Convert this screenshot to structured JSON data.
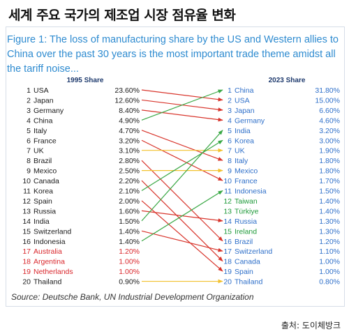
{
  "headline": "세계 주요 국가의 제조업 시장 점유율 변화",
  "figure_title": "Figure 1: The loss of manufacturing share by the US and Western allies to China over the past 30 years is the most important trade theme amidst all the tariff noise...",
  "source": "Source: Deutsche Bank, UN Industrial Development Organization",
  "credit": "출처: 도이체방크",
  "colors": {
    "black": "#1a1a1a",
    "red": "#d9262b",
    "green": "#1f9a3a",
    "blue": "#2e6fc9",
    "arrow_up": "#3aa845",
    "arrow_down": "#d8352c",
    "arrow_flat": "#f2c12e"
  },
  "chart_data": {
    "type": "slope",
    "left_header": "1995 Share",
    "right_header": "2023 Share",
    "left": [
      {
        "rank": "1",
        "country": "USA",
        "share": "23.60%",
        "color": "black"
      },
      {
        "rank": "2",
        "country": "Japan",
        "share": "12.60%",
        "color": "black"
      },
      {
        "rank": "3",
        "country": "Germany",
        "share": "8.40%",
        "color": "black"
      },
      {
        "rank": "4",
        "country": "China",
        "share": "4.90%",
        "color": "black"
      },
      {
        "rank": "5",
        "country": "Italy",
        "share": "4.70%",
        "color": "black"
      },
      {
        "rank": "6",
        "country": "France",
        "share": "3.20%",
        "color": "black"
      },
      {
        "rank": "7",
        "country": "UK",
        "share": "3.10%",
        "color": "black"
      },
      {
        "rank": "8",
        "country": "Brazil",
        "share": "2.80%",
        "color": "black"
      },
      {
        "rank": "9",
        "country": "Mexico",
        "share": "2.50%",
        "color": "black"
      },
      {
        "rank": "10",
        "country": "Canada",
        "share": "2.20%",
        "color": "black"
      },
      {
        "rank": "11",
        "country": "Korea",
        "share": "2.10%",
        "color": "black"
      },
      {
        "rank": "12",
        "country": "Spain",
        "share": "2.00%",
        "color": "black"
      },
      {
        "rank": "13",
        "country": "Russia",
        "share": "1.60%",
        "color": "black"
      },
      {
        "rank": "14",
        "country": "India",
        "share": "1.50%",
        "color": "black"
      },
      {
        "rank": "15",
        "country": "Switzerland",
        "share": "1.40%",
        "color": "black"
      },
      {
        "rank": "16",
        "country": "Indonesia",
        "share": "1.40%",
        "color": "black"
      },
      {
        "rank": "17",
        "country": "Australia",
        "share": "1.20%",
        "color": "red"
      },
      {
        "rank": "18",
        "country": "Argentina",
        "share": "1.00%",
        "color": "red"
      },
      {
        "rank": "19",
        "country": "Netherlands",
        "share": "1.00%",
        "color": "red"
      },
      {
        "rank": "20",
        "country": "Thailand",
        "share": "0.90%",
        "color": "black"
      }
    ],
    "right": [
      {
        "rank": "1",
        "country": "China",
        "share": "31.80%",
        "color": "blue"
      },
      {
        "rank": "2",
        "country": "USA",
        "share": "15.00%",
        "color": "blue"
      },
      {
        "rank": "3",
        "country": "Japan",
        "share": "6.60%",
        "color": "blue"
      },
      {
        "rank": "4",
        "country": "Germany",
        "share": "4.60%",
        "color": "blue"
      },
      {
        "rank": "5",
        "country": "India",
        "share": "3.20%",
        "color": "blue"
      },
      {
        "rank": "6",
        "country": "Korea",
        "share": "3.00%",
        "color": "blue"
      },
      {
        "rank": "7",
        "country": "UK",
        "share": "1.90%",
        "color": "blue"
      },
      {
        "rank": "8",
        "country": "Italy",
        "share": "1.80%",
        "color": "blue"
      },
      {
        "rank": "9",
        "country": "Mexico",
        "share": "1.80%",
        "color": "blue"
      },
      {
        "rank": "10",
        "country": "France",
        "share": "1.70%",
        "color": "blue"
      },
      {
        "rank": "11",
        "country": "Indonesia",
        "share": "1.50%",
        "color": "blue"
      },
      {
        "rank": "12",
        "country": "Taiwan",
        "share": "1.40%",
        "color": "green"
      },
      {
        "rank": "13",
        "country": "Türkiye",
        "share": "1.40%",
        "color": "green"
      },
      {
        "rank": "14",
        "country": "Russia",
        "share": "1.30%",
        "color": "blue"
      },
      {
        "rank": "15",
        "country": "Ireland",
        "share": "1.30%",
        "color": "green"
      },
      {
        "rank": "16",
        "country": "Brazil",
        "share": "1.20%",
        "color": "blue"
      },
      {
        "rank": "17",
        "country": "Switzerland",
        "share": "1.10%",
        "color": "blue"
      },
      {
        "rank": "18",
        "country": "Canada",
        "share": "1.00%",
        "color": "blue"
      },
      {
        "rank": "19",
        "country": "Spain",
        "share": "1.00%",
        "color": "blue"
      },
      {
        "rank": "20",
        "country": "Thailand",
        "share": "0.80%",
        "color": "blue"
      }
    ],
    "links": [
      {
        "from": 1,
        "to": 2,
        "direction": "down"
      },
      {
        "from": 2,
        "to": 3,
        "direction": "down"
      },
      {
        "from": 3,
        "to": 4,
        "direction": "down"
      },
      {
        "from": 4,
        "to": 1,
        "direction": "up"
      },
      {
        "from": 5,
        "to": 8,
        "direction": "down"
      },
      {
        "from": 6,
        "to": 10,
        "direction": "down"
      },
      {
        "from": 7,
        "to": 7,
        "direction": "flat"
      },
      {
        "from": 8,
        "to": 16,
        "direction": "down"
      },
      {
        "from": 9,
        "to": 9,
        "direction": "flat"
      },
      {
        "from": 10,
        "to": 18,
        "direction": "down"
      },
      {
        "from": 11,
        "to": 6,
        "direction": "up"
      },
      {
        "from": 12,
        "to": 19,
        "direction": "down"
      },
      {
        "from": 13,
        "to": 14,
        "direction": "down"
      },
      {
        "from": 14,
        "to": 5,
        "direction": "up"
      },
      {
        "from": 15,
        "to": 17,
        "direction": "down"
      },
      {
        "from": 16,
        "to": 11,
        "direction": "up"
      },
      {
        "from": 20,
        "to": 20,
        "direction": "flat"
      }
    ]
  }
}
